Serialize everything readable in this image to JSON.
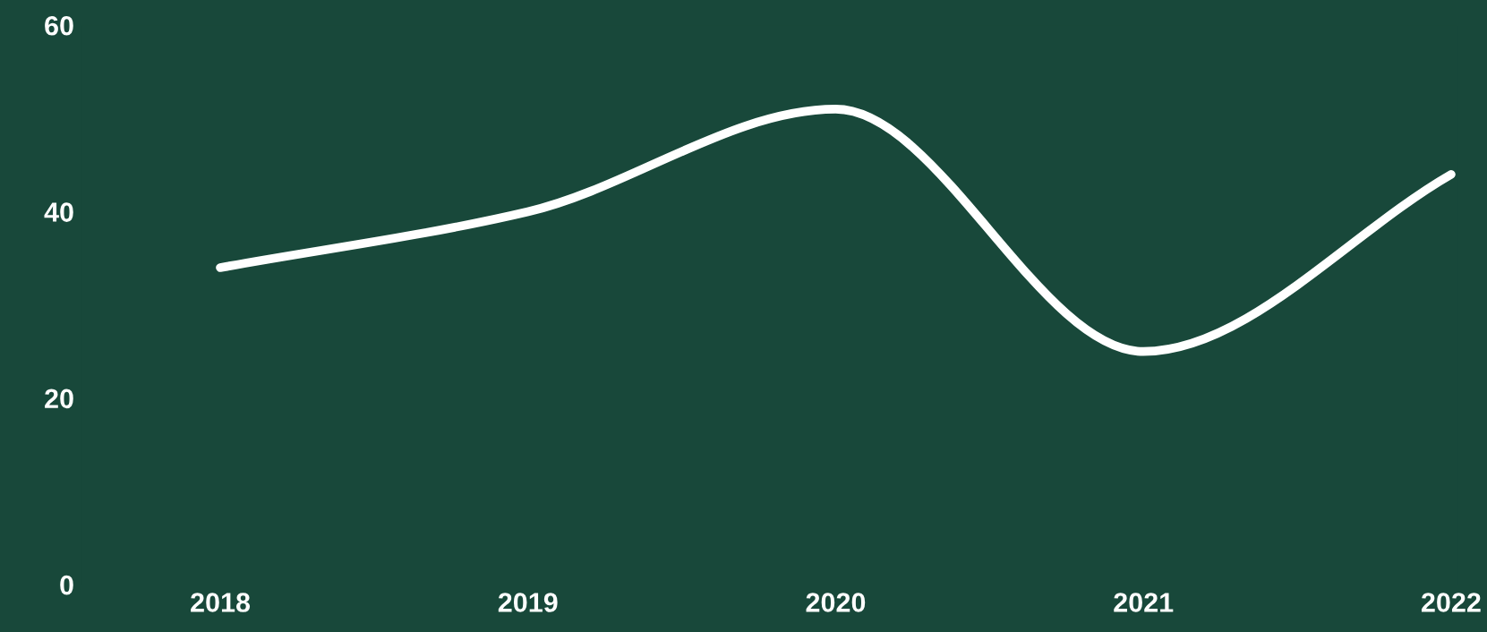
{
  "chart_data": {
    "type": "line",
    "categories": [
      "2018",
      "2019",
      "2020",
      "2021",
      "2022"
    ],
    "series": [
      {
        "color": "#ffffff",
        "values": [
          34,
          40,
          51,
          25,
          44
        ]
      }
    ],
    "ylim": [
      0,
      60
    ],
    "yticks": [
      0,
      20,
      40,
      60
    ],
    "grid": false,
    "legend": false,
    "marker": "none",
    "line_style": "solid"
  }
}
